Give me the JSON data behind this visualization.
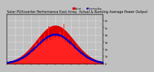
{
  "title": "Solar PV/Inverter Performance East Array  Actual & Running Average Power Output",
  "bg_color": "#c0c0c0",
  "plot_bg_color": "#c0c0c0",
  "filled_color": "#dd0000",
  "bar_color": "#ff2020",
  "avg_color": "#0000cc",
  "grid_color": "#ffffff",
  "n_points": 288,
  "peak_index": 144,
  "sigma": 55,
  "ylim": [
    0,
    1.15
  ],
  "ytick_labels": [
    "6k",
    "5k",
    "4k",
    "3k",
    "2k",
    "1k",
    "0"
  ],
  "legend_actual": "Actual",
  "legend_avg": "Running Avg",
  "title_fontsize": 3.5,
  "tick_fontsize": 2.8
}
